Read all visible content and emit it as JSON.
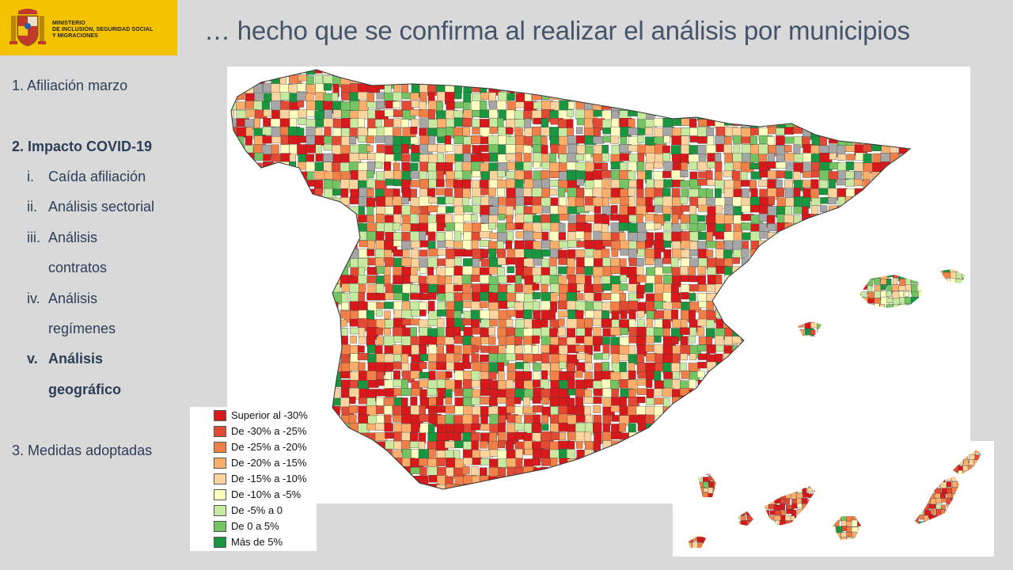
{
  "logo": {
    "lines": [
      "MINISTERIO",
      "DE INCLUSIÓN, SEGURIDAD SOCIAL",
      "Y MIGRACIONES"
    ]
  },
  "title": "… hecho que se confirma al realizar el análisis por municipios",
  "nav": {
    "item1": {
      "num": "1.",
      "label": "Afiliación marzo"
    },
    "item2": {
      "num": "2.",
      "label": "Impacto COVID-19"
    },
    "subs": [
      {
        "roman": "i.",
        "label": "Caída afiliación"
      },
      {
        "roman": "ii.",
        "label": "Análisis sectorial"
      },
      {
        "roman": "iii.",
        "label": "Análisis",
        "label2": "contratos"
      },
      {
        "roman": "iv.",
        "label": "Análisis",
        "label2": "regímenes"
      },
      {
        "roman": "v.",
        "label": "Análisis",
        "label2": "geográfico"
      }
    ],
    "item3": {
      "num": "3.",
      "label": "Medidas adoptadas"
    }
  },
  "legend": [
    {
      "label": "Superior al -30%",
      "color": "#d7191c"
    },
    {
      "label": "De -30% a -25%",
      "color": "#e34a33"
    },
    {
      "label": "De -25% a -20%",
      "color": "#f08048"
    },
    {
      "label": "De -20% a -15%",
      "color": "#fdae6b"
    },
    {
      "label": "De -15% a -10%",
      "color": "#fdd49e"
    },
    {
      "label": "De -10% a -5%",
      "color": "#ffffbf"
    },
    {
      "label": "De -5% a 0",
      "color": "#c7e9a0"
    },
    {
      "label": "De 0 a 5%",
      "color": "#74c464"
    },
    {
      "label": "Más de 5%",
      "color": "#1a9641"
    }
  ],
  "colors": {
    "brand_yellow": "#f3c300",
    "title_color": "#44546a",
    "nav_color": "#2c3e57",
    "no_data": "#a6a6a6"
  }
}
